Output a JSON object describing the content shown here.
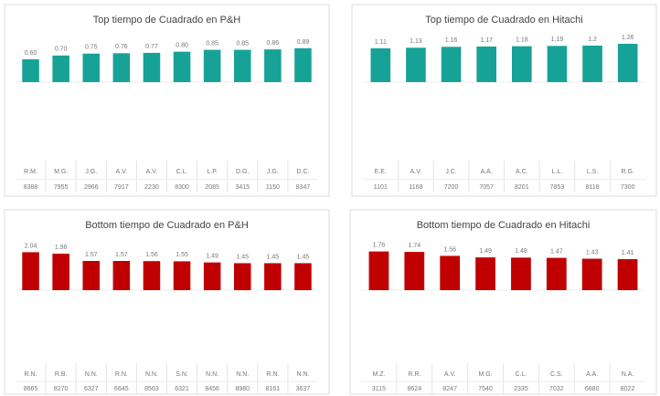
{
  "chart_data": [
    {
      "type": "bar",
      "title": "Top tiempo de Cuadrado en P&H",
      "color": "#17a297",
      "categories": [
        "R.M.",
        "M.G.",
        "J.G.",
        "A.V.",
        "A.V.",
        "C.L.",
        "L.P.",
        "D.G.",
        "J.G.",
        "D.C."
      ],
      "codes": [
        "8388",
        "7955",
        "2966",
        "7917",
        "2230",
        "8300",
        "2085",
        "3415",
        "1150",
        "8347"
      ],
      "values": [
        0.6,
        0.7,
        0.75,
        0.76,
        0.77,
        0.8,
        0.85,
        0.85,
        0.86,
        0.89
      ],
      "value_labels": [
        "0.60",
        "0.70",
        "0.75",
        "0.76",
        "0.77",
        "0.80",
        "0.85",
        "0.85",
        "0.86",
        "0.89"
      ],
      "ylim": [
        0,
        1.2
      ]
    },
    {
      "type": "bar",
      "title": "Top tiempo de Cuadrado en Hitachi",
      "color": "#17a297",
      "categories": [
        "E.E.",
        "A.V.",
        "J.C.",
        "A.A.",
        "A.C.",
        "L.L.",
        "L.S.",
        "R.G."
      ],
      "codes": [
        "1101",
        "1168",
        "7200",
        "7057",
        "8201",
        "7853",
        "8118",
        "7300"
      ],
      "values": [
        1.11,
        1.13,
        1.16,
        1.17,
        1.18,
        1.19,
        1.2,
        1.26
      ],
      "ylim": [
        0,
        1.5
      ]
    },
    {
      "type": "bar",
      "title": "Bottom tiempo de Cuadrado en P&H",
      "color": "#c00000",
      "categories": [
        "R.N.",
        "R.B.",
        "N.N.",
        "R.N.",
        "N.N.",
        "S.N.",
        "N.N.",
        "N.N.",
        "R.N.",
        "N.N."
      ],
      "codes": [
        "8665",
        "8270",
        "6327",
        "6645",
        "8563",
        "6321",
        "8456",
        "8980",
        "8161",
        "3637"
      ],
      "values": [
        2.04,
        1.96,
        1.57,
        1.57,
        1.56,
        1.55,
        1.49,
        1.45,
        1.45,
        1.45
      ],
      "ylim": [
        0,
        2.6
      ]
    },
    {
      "type": "bar",
      "title": "Bottom tiempo de Cuadrado en Hitachi",
      "color": "#c00000",
      "categories": [
        "M.Z.",
        "R.R.",
        "A.V.",
        "M.G.",
        "C.L.",
        "C.S.",
        "A.A.",
        "N.A."
      ],
      "codes": [
        "3115",
        "8624",
        "8247",
        "7540",
        "2335",
        "7032",
        "6880",
        "8022"
      ],
      "values": [
        1.76,
        1.74,
        1.56,
        1.49,
        1.48,
        1.47,
        1.43,
        1.41
      ],
      "ylim": [
        0,
        2.2
      ]
    }
  ]
}
